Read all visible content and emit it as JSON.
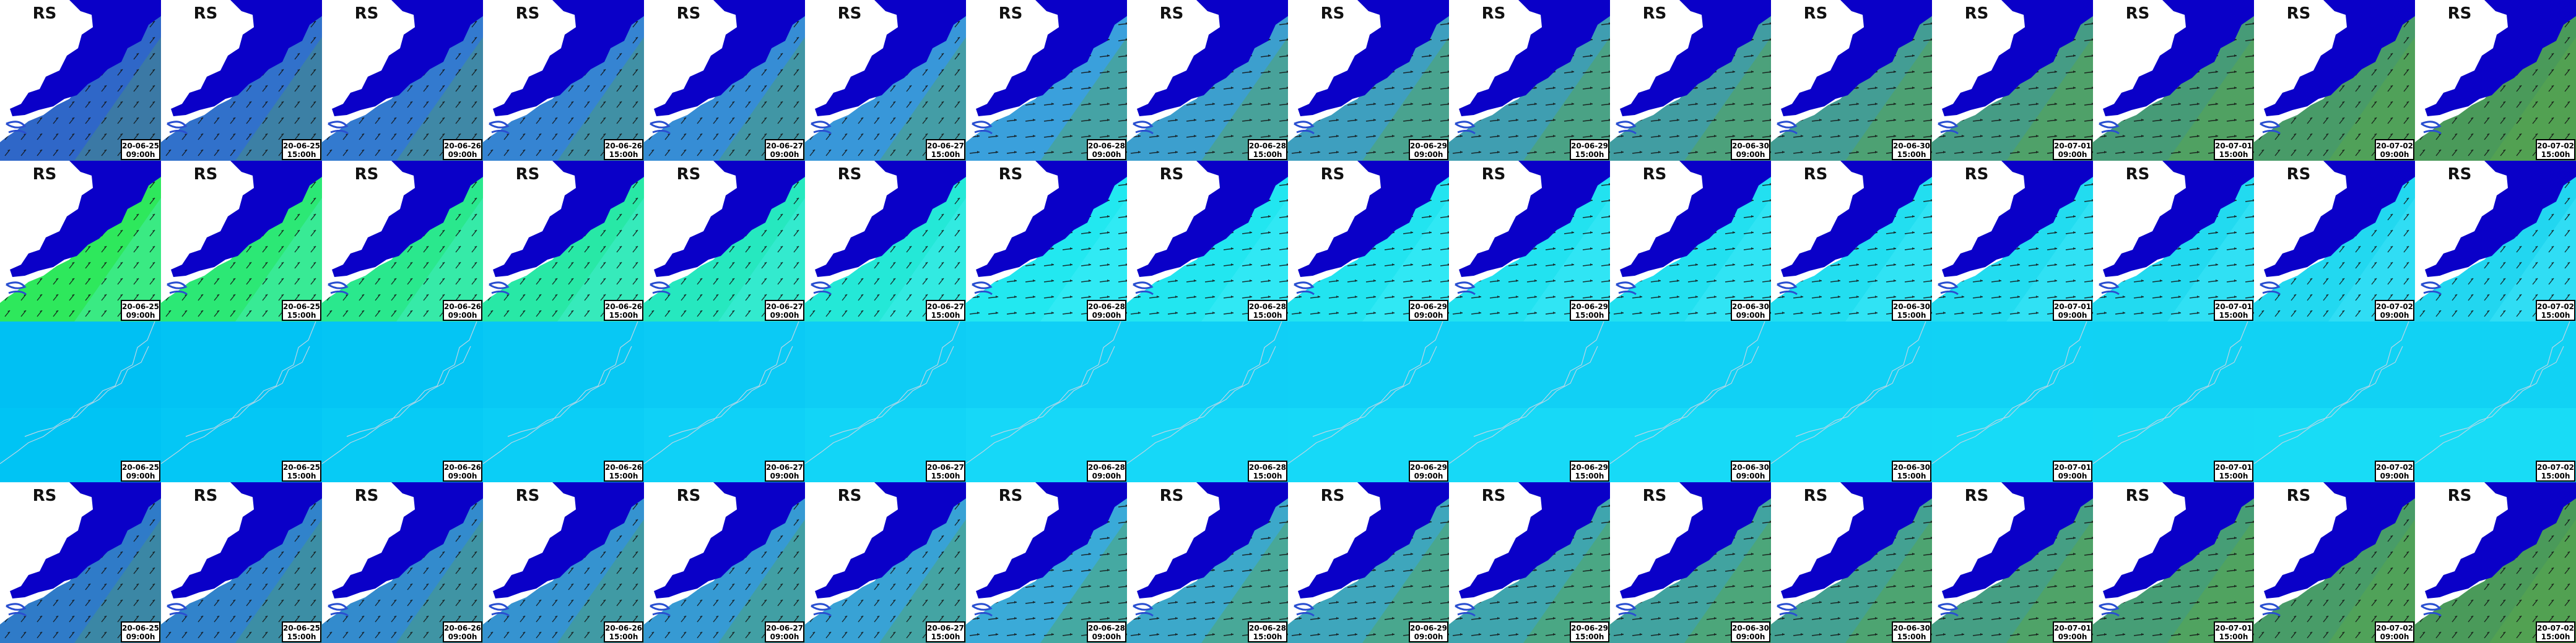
{
  "row_labels": [
    "RS",
    "RS",
    null,
    "RS"
  ],
  "columns": [
    {
      "date": "20-06-25",
      "time": "09:00h"
    },
    {
      "date": "20-06-25",
      "time": "15:00h"
    },
    {
      "date": "20-06-26",
      "time": "09:00h"
    },
    {
      "date": "20-06-26",
      "time": "15:00h"
    },
    {
      "date": "20-06-27",
      "time": "09:00h"
    },
    {
      "date": "20-06-27",
      "time": "15:00h"
    },
    {
      "date": "20-06-28",
      "time": "09:00h"
    },
    {
      "date": "20-06-28",
      "time": "15:00h"
    },
    {
      "date": "20-06-29",
      "time": "09:00h"
    },
    {
      "date": "20-06-29",
      "time": "15:00h"
    },
    {
      "date": "20-06-30",
      "time": "09:00h"
    },
    {
      "date": "20-06-30",
      "time": "15:00h"
    },
    {
      "date": "20-07-01",
      "time": "09:00h"
    },
    {
      "date": "20-07-01",
      "time": "15:00h"
    },
    {
      "date": "20-07-02",
      "time": "09:00h"
    },
    {
      "date": "20-07-02",
      "time": "15:00h"
    }
  ]
}
